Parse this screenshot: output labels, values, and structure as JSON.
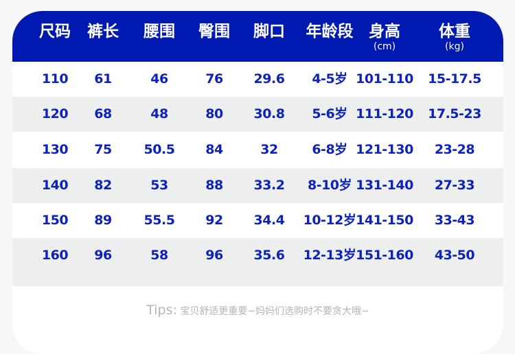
{
  "header": {
    "columns": [
      {
        "label": "尺码",
        "unit": ""
      },
      {
        "label": "裤长",
        "unit": ""
      },
      {
        "label": "腰围",
        "unit": ""
      },
      {
        "label": "臀围",
        "unit": ""
      },
      {
        "label": "脚口",
        "unit": ""
      },
      {
        "label": "年龄段",
        "unit": ""
      },
      {
        "label": "身高",
        "unit": "(cm)"
      },
      {
        "label": "体重",
        "unit": "(kg)"
      }
    ]
  },
  "rows": [
    [
      "110",
      "61",
      "46",
      "76",
      "29.6",
      "4-5岁",
      "101-110",
      "15-17.5"
    ],
    [
      "120",
      "68",
      "48",
      "80",
      "30.8",
      "5-6岁",
      "111-120",
      "17.5-23"
    ],
    [
      "130",
      "75",
      "50.5",
      "84",
      "32",
      "6-8岁",
      "121-130",
      "23-28"
    ],
    [
      "140",
      "82",
      "53",
      "88",
      "33.2",
      "8-10岁",
      "131-140",
      "27-33"
    ],
    [
      "150",
      "89",
      "55.5",
      "92",
      "34.4",
      "10-12岁",
      "141-150",
      "33-43"
    ],
    [
      "160",
      "96",
      "58",
      "96",
      "35.6",
      "12-13岁",
      "151-160",
      "43-50"
    ]
  ],
  "tips": {
    "prefix": "Tips:",
    "text": " 宝贝舒适更重要~妈妈们选购时不要贪大哦~"
  },
  "colors": {
    "header_bg": "#0019b0",
    "value_text": "#0d22b8",
    "alt_row": "#edeeee",
    "tips_text": "#b5b5b5"
  }
}
